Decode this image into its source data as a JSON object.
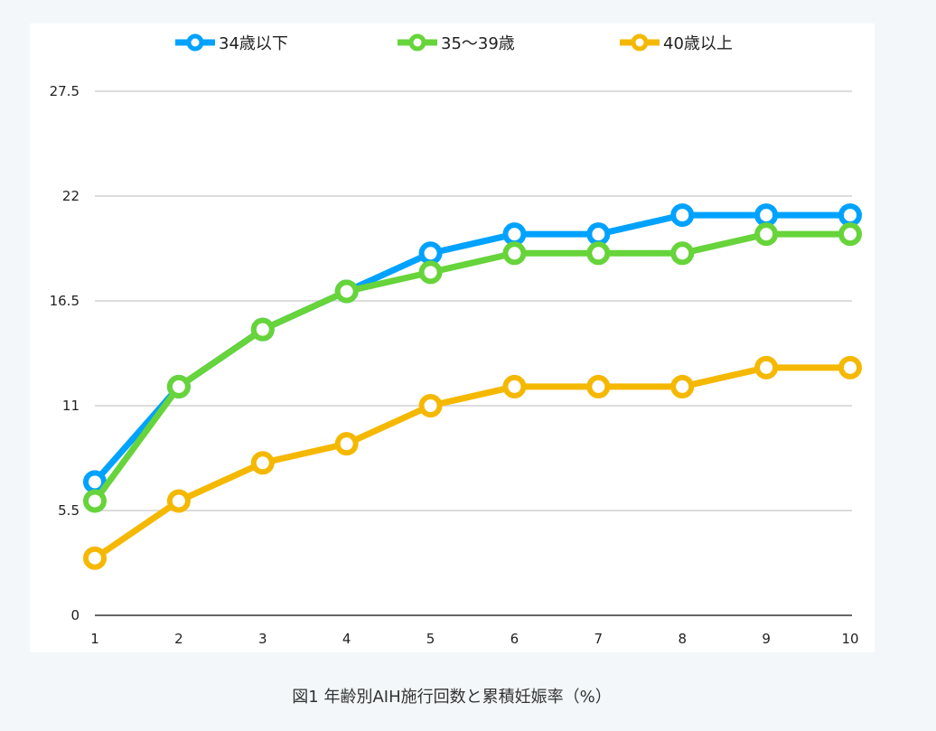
{
  "caption": "図1 年齢別AIH施行回数と累積妊娠率（%）",
  "chart_data": {
    "type": "line",
    "title": "",
    "xlabel": "",
    "ylabel": "",
    "x": [
      1,
      2,
      3,
      4,
      5,
      6,
      7,
      8,
      9,
      10
    ],
    "x_tick_labels": [
      "1",
      "2",
      "3",
      "4",
      "5",
      "6",
      "7",
      "8",
      "9",
      "10"
    ],
    "y_tick_labels": [
      "0",
      "5.5",
      "11",
      "16.5",
      "22",
      "27.5"
    ],
    "y_ticks": [
      0,
      5.5,
      11,
      16.5,
      22,
      27.5
    ],
    "ylim": [
      0,
      27.5
    ],
    "grid": "horizontal",
    "legend_position": "top",
    "series": [
      {
        "name": "34歳以下",
        "color": "#00a2ff",
        "values": [
          7,
          12,
          15,
          17,
          19,
          20,
          20,
          21,
          21,
          21
        ]
      },
      {
        "name": "35～39歳",
        "color": "#66d43a",
        "values": [
          6,
          12,
          15,
          17,
          18,
          19,
          19,
          19,
          20,
          20
        ]
      },
      {
        "name": "40歳以上",
        "color": "#f5b800",
        "values": [
          3,
          6,
          8,
          9,
          11,
          12,
          12,
          12,
          13,
          13
        ]
      }
    ]
  }
}
